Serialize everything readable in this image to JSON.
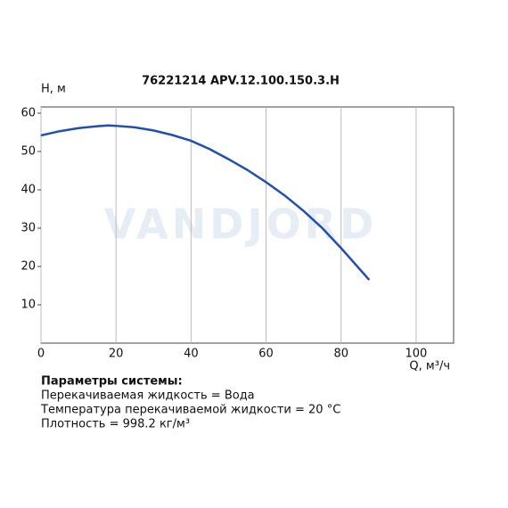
{
  "chart_data": {
    "type": "line",
    "title": "76221214 APV.12.100.150.3.H",
    "y_label": "H, м",
    "x_label": "Q, м³/ч",
    "watermark": "VANDJORD",
    "x": [
      0,
      5,
      10,
      15,
      18,
      20,
      25,
      30,
      35,
      40,
      45,
      50,
      55,
      60,
      65,
      70,
      75,
      80,
      87.5
    ],
    "series": [
      {
        "name": "H",
        "color": "#1f4fb5",
        "values": [
          54.2,
          55.3,
          56.1,
          56.6,
          56.8,
          56.7,
          56.3,
          55.5,
          54.3,
          52.8,
          50.6,
          48.0,
          45.2,
          42.0,
          38.5,
          34.5,
          30.0,
          24.8,
          16.5
        ]
      }
    ],
    "xlim": [
      0,
      110
    ],
    "ylim": [
      0,
      60
    ],
    "xticks": [
      0,
      20,
      40,
      60,
      80,
      100
    ],
    "yticks": [
      10,
      20,
      30,
      40,
      50,
      60
    ],
    "grid": "x"
  },
  "system_parameters": {
    "title": "Параметры системы:",
    "lines": [
      "Перекачиваемая жидкость = Вода",
      "Температура перекачиваемой жидкости = 20 °C",
      "Плотность = 998.2 кг/м³"
    ]
  }
}
